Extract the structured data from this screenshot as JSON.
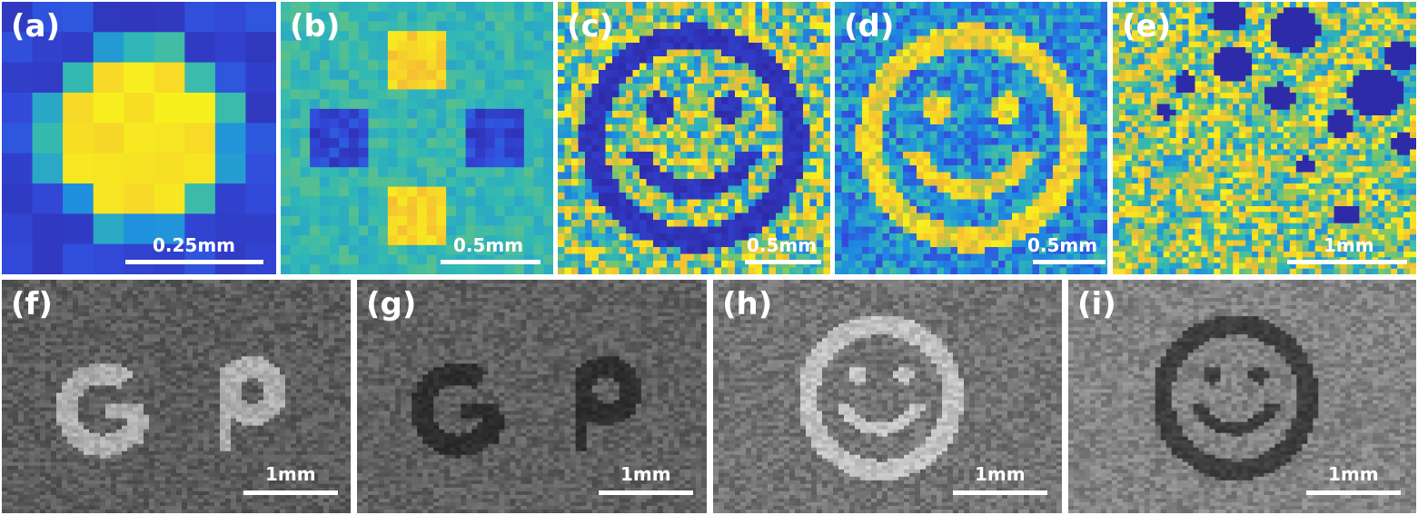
{
  "panels": [
    {
      "id": "a",
      "label": "(a)",
      "scale": "0.25mm",
      "kind": "heatmap-blob"
    },
    {
      "id": "b",
      "label": "(b)",
      "scale": "0.5mm",
      "kind": "heatmap-squares"
    },
    {
      "id": "c",
      "label": "(c)",
      "scale": "0.5mm",
      "kind": "heatmap-smiley-dark"
    },
    {
      "id": "d",
      "label": "(d)",
      "scale": "0.5mm",
      "kind": "heatmap-smiley-bright"
    },
    {
      "id": "e",
      "label": "(e)",
      "scale": "1mm",
      "kind": "heatmap-voids"
    },
    {
      "id": "f",
      "label": "(f)",
      "scale": "1mm",
      "kind": "gray-letters-bright"
    },
    {
      "id": "g",
      "label": "(g)",
      "scale": "1mm",
      "kind": "gray-letters-dark"
    },
    {
      "id": "h",
      "label": "(h)",
      "scale": "1mm",
      "kind": "gray-smiley-bright"
    },
    {
      "id": "i",
      "label": "(i)",
      "scale": "1mm",
      "kind": "gray-smiley-dark"
    }
  ],
  "colors": {
    "map_low": "#2b1f9a",
    "map_mid": "#3fb6a8",
    "map_high": "#f5e824",
    "gray_bg": "#5e5e5e",
    "label": "#ffffff"
  }
}
